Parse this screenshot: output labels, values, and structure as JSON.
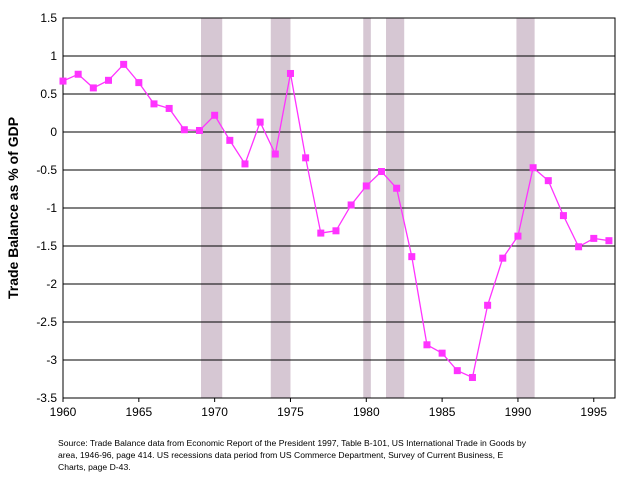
{
  "chart_data": {
    "type": "line",
    "title": "",
    "xlabel": "",
    "ylabel": "Trade Balance as % of GDP",
    "xlim": [
      1960,
      1996.4
    ],
    "ylim": [
      -3.5,
      1.5
    ],
    "xticks": [
      1960,
      1965,
      1970,
      1975,
      1980,
      1985,
      1990,
      1995
    ],
    "yticks": [
      1.5,
      1,
      0.5,
      0,
      -0.5,
      -1,
      -1.5,
      -2,
      -2.5,
      -3,
      -3.5
    ],
    "ytick_labels": [
      "1.5",
      "1",
      "0.5",
      "0",
      "-0.5",
      "-1",
      "-1.5",
      "-2",
      "-2.5",
      "-3",
      "-3.5"
    ],
    "grid": "horizontal",
    "series": [
      {
        "color": "#ff33ff",
        "marker": "square",
        "x": [
          1960,
          1961,
          1962,
          1963,
          1964,
          1965,
          1966,
          1967,
          1968,
          1969,
          1970,
          1971,
          1972,
          1973,
          1974,
          1975,
          1976,
          1977,
          1978,
          1979,
          1980,
          1981,
          1982,
          1983,
          1984,
          1985,
          1986,
          1987,
          1988,
          1989,
          1990,
          1991,
          1992,
          1993,
          1994,
          1995,
          1996
        ],
        "y": [
          0.67,
          0.76,
          0.58,
          0.68,
          0.89,
          0.65,
          0.37,
          0.31,
          0.03,
          0.02,
          0.22,
          -0.11,
          -0.42,
          0.13,
          -0.29,
          0.77,
          -0.34,
          -1.33,
          -1.3,
          -0.96,
          -0.71,
          -0.52,
          -0.74,
          -1.64,
          -2.8,
          -2.91,
          -3.14,
          -3.23,
          -2.28,
          -1.66,
          -1.37,
          -0.47,
          -0.64,
          -1.1,
          -1.51,
          -1.4,
          -1.43
        ]
      }
    ],
    "recessions": [
      [
        1969.1,
        1970.5
      ],
      [
        1973.7,
        1975.0
      ],
      [
        1979.8,
        1980.3
      ],
      [
        1981.3,
        1982.5
      ],
      [
        1989.9,
        1991.1
      ]
    ],
    "recession_color": "#d6c7d3",
    "source_lines": [
      "Source:  Trade Balance data from Economic Report of the President 1997,  Table B-101, US International Trade in Goods by",
      "area, 1946-96, page 414.     US recessions data period from US Commerce Department, Survey of Current Business, E",
      "Charts, page D-43."
    ]
  }
}
